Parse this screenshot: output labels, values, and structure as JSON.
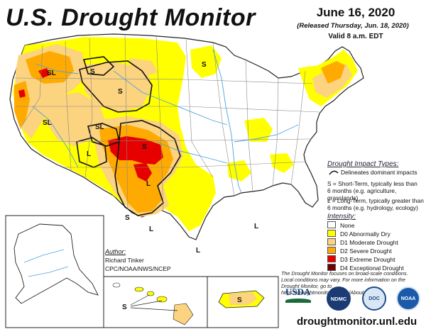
{
  "header": {
    "title": "U.S. Drought Monitor",
    "date": "June 16, 2020",
    "released": "(Released Thursday, Jun. 18, 2020)",
    "valid": "Valid 8 a.m. EDT"
  },
  "impact": {
    "title": "Drought Impact Types:",
    "delineates": "Delineates dominant impacts",
    "s_text_1": "S = Short-Term, typically less than",
    "s_text_2": "6 months (e.g. agriculture, grasslands)",
    "l_text_1": "L = Long-Term, typically greater than",
    "l_text_2": "6 months (e.g. hydrology, ecology)"
  },
  "intensity": {
    "title": "Intensity:",
    "items": [
      {
        "label": "None",
        "color": "#ffffff"
      },
      {
        "label": "D0 Abnormally Dry",
        "color": "#ffff00"
      },
      {
        "label": "D1 Moderate Drought",
        "color": "#fcd37f"
      },
      {
        "label": "D2 Severe Drought",
        "color": "#ffaa00"
      },
      {
        "label": "D3 Extreme Drought",
        "color": "#e60000"
      },
      {
        "label": "D4 Exceptional Drought",
        "color": "#730000"
      }
    ]
  },
  "author": {
    "heading": "Author:",
    "name": "Richard Tinker",
    "org": "CPC/NOAA/NWS/NCEP"
  },
  "disclaimer": {
    "line1": "The Drought Monitor focuses on broad-scale conditions.",
    "line2": "Local conditions may vary. For more information on the",
    "line3": "Drought Monitor, go to https://droughtmonitor.unl.edu/About.aspx"
  },
  "logos": {
    "usda": "USDA",
    "ndmc": "NDMC",
    "doc": "DOC",
    "noaa": "NOAA"
  },
  "url": "droughtmonitor.unl.edu",
  "map_labels": {
    "S": "S",
    "L": "L",
    "SL": "SL"
  }
}
